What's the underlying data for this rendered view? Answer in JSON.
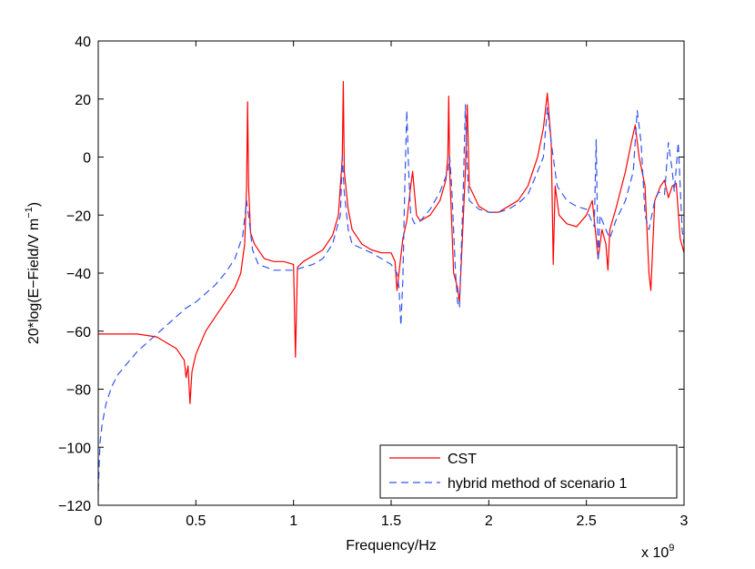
{
  "chart_data": {
    "type": "line",
    "title": "",
    "xlabel": "Frequency/Hz",
    "ylabel": "20*log(E−Field/V m",
    "ylabel_sup": "−1",
    "ylabel_close": ")",
    "x_exponent_base": "x 10",
    "x_exponent_power": "9",
    "xlim": [
      0,
      3
    ],
    "ylim": [
      -120,
      40
    ],
    "x_scale_note": "x values in units of 1e9 Hz",
    "xticks": [
      0,
      0.5,
      1,
      1.5,
      2,
      2.5,
      3
    ],
    "xtick_labels": [
      "0",
      "0.5",
      "1",
      "1.5",
      "2",
      "2.5",
      "3"
    ],
    "yticks": [
      -120,
      -100,
      -80,
      -60,
      -40,
      -20,
      0,
      20,
      40
    ],
    "ytick_labels": [
      "−120",
      "−100",
      "−80",
      "−60",
      "−40",
      "−20",
      "0",
      "20",
      "40"
    ],
    "grid": false,
    "legend_position": "bottom-right",
    "series": [
      {
        "name": "CST",
        "color": "#ff0000",
        "style": "solid",
        "x": [
          0,
          0.1,
          0.2,
          0.3,
          0.35,
          0.4,
          0.44,
          0.45,
          0.46,
          0.47,
          0.48,
          0.5,
          0.55,
          0.6,
          0.65,
          0.7,
          0.73,
          0.75,
          0.76,
          0.765,
          0.77,
          0.78,
          0.8,
          0.85,
          0.9,
          0.95,
          1.0,
          1.01,
          1.02,
          1.05,
          1.1,
          1.15,
          1.2,
          1.23,
          1.25,
          1.255,
          1.26,
          1.28,
          1.3,
          1.35,
          1.4,
          1.45,
          1.5,
          1.52,
          1.53,
          1.54,
          1.56,
          1.58,
          1.6,
          1.61,
          1.63,
          1.65,
          1.7,
          1.75,
          1.78,
          1.79,
          1.795,
          1.8,
          1.82,
          1.84,
          1.85,
          1.86,
          1.88,
          1.89,
          1.9,
          1.95,
          2.0,
          2.05,
          2.1,
          2.15,
          2.2,
          2.25,
          2.28,
          2.3,
          2.32,
          2.33,
          2.34,
          2.36,
          2.4,
          2.45,
          2.5,
          2.53,
          2.55,
          2.56,
          2.58,
          2.6,
          2.61,
          2.62,
          2.65,
          2.7,
          2.73,
          2.75,
          2.77,
          2.8,
          2.82,
          2.83,
          2.84,
          2.85,
          2.88,
          2.9,
          2.92,
          2.94,
          2.96,
          2.98,
          3.0
        ],
        "y": [
          -61,
          -61,
          -61,
          -62,
          -64,
          -66,
          -70,
          -76,
          -72,
          -85,
          -74,
          -68,
          -60,
          -55,
          -50,
          -45,
          -40,
          -30,
          -10,
          19,
          -10,
          -26,
          -30,
          -35,
          -36,
          -36,
          -37,
          -69,
          -38,
          -36,
          -34,
          -32,
          -27,
          -20,
          0,
          26,
          -5,
          -18,
          -25,
          -30,
          -32,
          -33,
          -33,
          -36,
          -46,
          -40,
          -28,
          -22,
          -10,
          -5,
          -20,
          -22,
          -20,
          -15,
          -8,
          0,
          21,
          -5,
          -40,
          -45,
          -50,
          -35,
          -5,
          18,
          -10,
          -17,
          -19,
          -19,
          -17,
          -15,
          -10,
          0,
          10,
          22,
          5,
          -37,
          -10,
          -20,
          -23,
          -24,
          -20,
          -15,
          -28,
          -35,
          -25,
          -30,
          -39,
          -25,
          -18,
          -5,
          5,
          11,
          0,
          -10,
          -40,
          -46,
          -30,
          -15,
          -10,
          -8,
          -14,
          -10,
          -9,
          -28,
          -33
        ]
      },
      {
        "name": "hybrid method of scenario 1",
        "color": "#3355ee",
        "style": "dashed",
        "x": [
          0,
          0.005,
          0.01,
          0.02,
          0.04,
          0.07,
          0.1,
          0.15,
          0.2,
          0.25,
          0.3,
          0.35,
          0.4,
          0.45,
          0.5,
          0.55,
          0.6,
          0.65,
          0.7,
          0.74,
          0.76,
          0.765,
          0.77,
          0.79,
          0.82,
          0.9,
          1.0,
          1.1,
          1.15,
          1.2,
          1.24,
          1.25,
          1.26,
          1.28,
          1.3,
          1.4,
          1.5,
          1.53,
          1.54,
          1.55,
          1.56,
          1.57,
          1.58,
          1.59,
          1.6,
          1.62,
          1.65,
          1.7,
          1.75,
          1.79,
          1.8,
          1.81,
          1.83,
          1.84,
          1.85,
          1.86,
          1.87,
          1.88,
          1.89,
          1.9,
          1.95,
          2.0,
          2.05,
          2.1,
          2.15,
          2.2,
          2.25,
          2.28,
          2.3,
          2.32,
          2.35,
          2.4,
          2.45,
          2.5,
          2.54,
          2.55,
          2.56,
          2.57,
          2.6,
          2.62,
          2.65,
          2.7,
          2.74,
          2.76,
          2.78,
          2.8,
          2.82,
          2.85,
          2.87,
          2.9,
          2.92,
          2.94,
          2.95,
          2.97,
          2.99,
          3.0
        ],
        "y": [
          -115,
          -105,
          -98,
          -92,
          -85,
          -79,
          -75,
          -71,
          -67,
          -64,
          -61,
          -58,
          -55,
          -52,
          -50,
          -47,
          -44,
          -40,
          -35,
          -27,
          -15,
          -18,
          -20,
          -32,
          -37,
          -39,
          -39,
          -37,
          -35,
          -30,
          -20,
          0,
          -12,
          -25,
          -30,
          -33,
          -37,
          -40,
          -45,
          -58,
          -42,
          -10,
          16,
          -5,
          -20,
          -23,
          -22,
          -18,
          -12,
          -5,
          0,
          -10,
          -40,
          -50,
          -52,
          -30,
          -10,
          18,
          -5,
          -15,
          -18,
          -19,
          -19,
          -18,
          -16,
          -13,
          -5,
          0,
          17,
          5,
          -10,
          -15,
          -17,
          -18,
          -24,
          6,
          -36,
          -20,
          -25,
          -28,
          -22,
          -15,
          -5,
          16,
          5,
          -20,
          -25,
          -15,
          -12,
          -13,
          5,
          -5,
          -12,
          5,
          -25,
          -30
        ]
      }
    ]
  }
}
